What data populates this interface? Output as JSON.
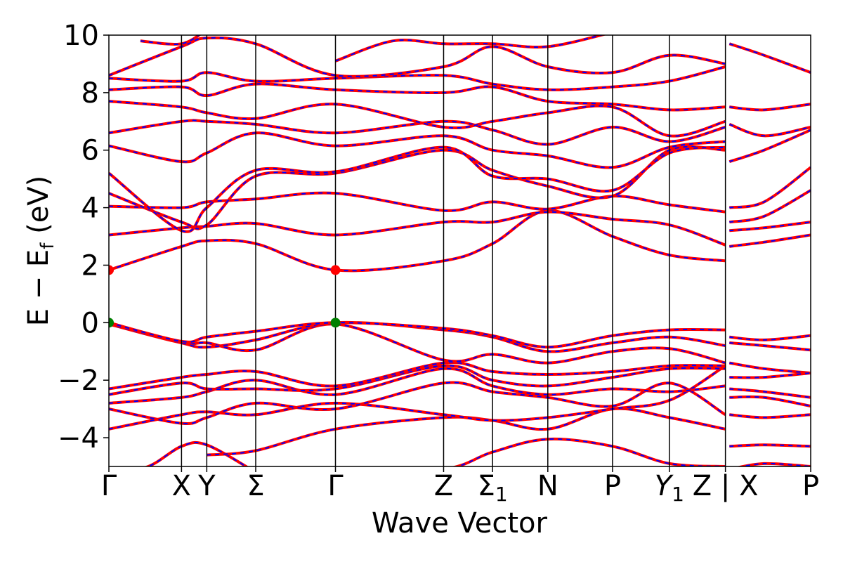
{
  "chart_data": {
    "type": "line",
    "xlabel": "Wave Vector",
    "ylabel": "E − E",
    "ylabel_sub": "f",
    "ylabel_unit": " (eV)",
    "ylim": [
      -5,
      10
    ],
    "yticks": [
      -4,
      -2,
      0,
      2,
      4,
      6,
      8,
      10
    ],
    "ytick_labels": [
      "−4",
      "−2",
      "0",
      "2",
      "4",
      "6",
      "8",
      "10"
    ],
    "xlim": [
      0,
      8.89
    ],
    "kpoints": [
      {
        "x": 0.0,
        "label": "Γ"
      },
      {
        "x": 0.92,
        "label": "X"
      },
      {
        "x": 1.24,
        "label": "Y"
      },
      {
        "x": 1.86,
        "label": "Σ"
      },
      {
        "x": 2.87,
        "label": "Γ"
      },
      {
        "x": 4.24,
        "label": "Z"
      },
      {
        "x": 4.86,
        "label": "Σ",
        "sub": "1"
      },
      {
        "x": 5.56,
        "label": "N"
      },
      {
        "x": 6.38,
        "label": "P"
      },
      {
        "x": 7.1,
        "label": "Y",
        "sub": "1",
        "italic": true
      },
      {
        "x": 7.81,
        "label": "Z | X"
      },
      {
        "x": 8.89,
        "label": "P"
      }
    ],
    "series_colors": {
      "primary": "#ff0000",
      "overlay": "#0000ff"
    },
    "markers": [
      {
        "x": 0.0,
        "y": 1.83,
        "color": "#ff0000"
      },
      {
        "x": 2.87,
        "y": 1.83,
        "color": "#ff0000"
      },
      {
        "x": 0.0,
        "y": 0.0,
        "color": "#008000"
      },
      {
        "x": 2.87,
        "y": 0.0,
        "color": "#008000"
      }
    ],
    "bands": [
      [
        [
          0,
          -5.3
        ],
        [
          0.5,
          -5.0
        ],
        [
          0.92,
          -4.3
        ],
        [
          1.24,
          -4.25
        ],
        [
          1.86,
          -5.2
        ]
      ],
      [
        [
          2.87,
          -5.3
        ],
        [
          4.24,
          -5.1
        ],
        [
          4.86,
          -4.5
        ],
        [
          5.56,
          -4.05
        ],
        [
          6.38,
          -4.3
        ],
        [
          7.1,
          -4.9
        ],
        [
          7.81,
          -5.0
        ]
      ],
      [
        [
          1.24,
          -4.6
        ],
        [
          1.86,
          -4.45
        ],
        [
          2.87,
          -3.7
        ],
        [
          4.24,
          -3.3
        ],
        [
          4.86,
          -3.4
        ],
        [
          5.56,
          -3.7
        ],
        [
          6.38,
          -3.0
        ],
        [
          7.1,
          -3.3
        ],
        [
          7.81,
          -3.7
        ]
      ],
      [
        [
          0,
          -3.7
        ],
        [
          0.92,
          -3.2
        ],
        [
          1.24,
          -3.1
        ],
        [
          1.86,
          -3.2
        ],
        [
          2.87,
          -2.8
        ],
        [
          4.24,
          -3.2
        ],
        [
          4.86,
          -3.4
        ],
        [
          5.56,
          -3.3
        ],
        [
          6.38,
          -3.0
        ],
        [
          7.1,
          -2.7
        ],
        [
          7.81,
          -1.5
        ]
      ],
      [
        [
          0,
          -3.0
        ],
        [
          0.92,
          -3.5
        ],
        [
          1.24,
          -3.3
        ],
        [
          1.86,
          -2.8
        ],
        [
          2.87,
          -3.0
        ],
        [
          4.24,
          -2.1
        ],
        [
          4.86,
          -2.4
        ],
        [
          5.56,
          -2.6
        ],
        [
          6.38,
          -2.9
        ],
        [
          7.1,
          -2.1
        ],
        [
          7.81,
          -3.2
        ]
      ],
      [
        [
          0,
          -2.8
        ],
        [
          0.92,
          -2.6
        ],
        [
          1.24,
          -2.4
        ],
        [
          1.86,
          -2.0
        ],
        [
          2.87,
          -2.5
        ],
        [
          4.24,
          -1.6
        ],
        [
          4.86,
          -2.2
        ],
        [
          5.56,
          -2.5
        ],
        [
          6.38,
          -2.3
        ],
        [
          7.1,
          -2.4
        ],
        [
          7.81,
          -2.2
        ]
      ],
      [
        [
          0,
          -2.5
        ],
        [
          0.92,
          -2.1
        ],
        [
          1.24,
          -2.3
        ],
        [
          1.86,
          -2.3
        ],
        [
          2.87,
          -2.3
        ],
        [
          4.24,
          -1.5
        ],
        [
          4.86,
          -2.0
        ],
        [
          5.56,
          -2.2
        ],
        [
          6.38,
          -1.9
        ],
        [
          7.1,
          -1.6
        ],
        [
          7.81,
          -1.6
        ]
      ],
      [
        [
          0,
          -2.3
        ],
        [
          0.92,
          -1.9
        ],
        [
          1.24,
          -1.8
        ],
        [
          1.86,
          -1.7
        ],
        [
          2.87,
          -2.2
        ],
        [
          4.24,
          -1.4
        ],
        [
          4.86,
          -1.7
        ],
        [
          5.56,
          -1.8
        ],
        [
          6.38,
          -1.7
        ],
        [
          7.1,
          -1.5
        ],
        [
          7.81,
          -1.5
        ]
      ],
      [
        [
          0,
          -0.05
        ],
        [
          0.92,
          -0.7
        ],
        [
          1.24,
          -0.7
        ],
        [
          1.86,
          -0.95
        ],
        [
          2.87,
          -0.05
        ],
        [
          4.24,
          -1.3
        ],
        [
          4.86,
          -1.1
        ],
        [
          5.56,
          -1.4
        ],
        [
          6.38,
          -1.0
        ],
        [
          7.1,
          -0.9
        ],
        [
          7.81,
          -1.4
        ]
      ],
      [
        [
          0,
          0.0
        ],
        [
          0.92,
          -0.7
        ],
        [
          1.24,
          -0.85
        ],
        [
          1.86,
          -0.6
        ],
        [
          2.87,
          0.0
        ],
        [
          4.24,
          -0.25
        ],
        [
          4.86,
          -0.5
        ],
        [
          5.56,
          -1.0
        ],
        [
          6.38,
          -0.7
        ],
        [
          7.1,
          -0.5
        ],
        [
          7.81,
          -0.8
        ]
      ],
      [
        [
          0,
          0.0
        ],
        [
          0.92,
          -0.65
        ],
        [
          1.24,
          -0.5
        ],
        [
          1.86,
          -0.3
        ],
        [
          2.87,
          0.0
        ],
        [
          4.24,
          -0.2
        ],
        [
          4.86,
          -0.45
        ],
        [
          5.56,
          -0.85
        ],
        [
          6.38,
          -0.45
        ],
        [
          7.1,
          -0.25
        ],
        [
          7.81,
          -0.25
        ]
      ],
      [
        [
          0,
          1.83
        ],
        [
          0.92,
          2.65
        ],
        [
          1.24,
          2.85
        ],
        [
          1.86,
          2.75
        ],
        [
          2.87,
          1.83
        ],
        [
          4.24,
          2.15
        ],
        [
          4.86,
          2.75
        ],
        [
          5.56,
          3.9
        ],
        [
          6.38,
          3.0
        ],
        [
          7.1,
          2.35
        ],
        [
          7.81,
          2.15
        ]
      ],
      [
        [
          0,
          3.05
        ],
        [
          0.92,
          3.3
        ],
        [
          1.24,
          3.35
        ],
        [
          1.86,
          3.45
        ],
        [
          2.87,
          3.05
        ],
        [
          4.24,
          3.5
        ],
        [
          4.86,
          3.5
        ],
        [
          5.56,
          3.85
        ],
        [
          6.38,
          3.6
        ],
        [
          7.1,
          3.4
        ],
        [
          7.81,
          2.7
        ]
      ],
      [
        [
          0,
          4.05
        ],
        [
          0.92,
          4.0
        ],
        [
          1.24,
          4.2
        ],
        [
          1.86,
          4.3
        ],
        [
          2.87,
          4.5
        ],
        [
          4.24,
          3.9
        ],
        [
          4.86,
          4.2
        ],
        [
          5.56,
          3.95
        ],
        [
          6.38,
          4.4
        ],
        [
          7.1,
          4.1
        ],
        [
          7.81,
          3.85
        ]
      ],
      [
        [
          0,
          4.5
        ],
        [
          0.92,
          3.5
        ],
        [
          1.24,
          3.4
        ],
        [
          1.86,
          5.1
        ],
        [
          2.87,
          5.2
        ],
        [
          4.24,
          6.0
        ],
        [
          4.86,
          5.3
        ],
        [
          5.56,
          4.75
        ],
        [
          6.38,
          4.4
        ],
        [
          7.1,
          6.0
        ],
        [
          7.81,
          6.0
        ]
      ],
      [
        [
          0,
          5.2
        ],
        [
          0.92,
          3.2
        ],
        [
          1.24,
          4.0
        ],
        [
          1.86,
          5.3
        ],
        [
          2.87,
          5.25
        ],
        [
          4.24,
          6.1
        ],
        [
          4.86,
          5.1
        ],
        [
          5.56,
          5.0
        ],
        [
          6.38,
          4.6
        ],
        [
          7.1,
          5.9
        ],
        [
          7.81,
          6.1
        ]
      ],
      [
        [
          0,
          6.15
        ],
        [
          0.92,
          5.6
        ],
        [
          1.24,
          5.9
        ],
        [
          1.86,
          6.6
        ],
        [
          2.87,
          6.15
        ],
        [
          4.24,
          6.5
        ],
        [
          4.86,
          6.0
        ],
        [
          5.56,
          5.8
        ],
        [
          6.38,
          5.4
        ],
        [
          7.1,
          6.1
        ],
        [
          7.81,
          6.3
        ]
      ],
      [
        [
          0,
          6.6
        ],
        [
          0.92,
          7.0
        ],
        [
          1.24,
          7.0
        ],
        [
          1.86,
          6.9
        ],
        [
          2.87,
          6.6
        ],
        [
          4.24,
          7.0
        ],
        [
          4.86,
          6.7
        ],
        [
          5.56,
          6.2
        ],
        [
          6.38,
          6.8
        ],
        [
          7.1,
          6.3
        ],
        [
          7.81,
          6.8
        ]
      ],
      [
        [
          0,
          7.7
        ],
        [
          0.92,
          7.5
        ],
        [
          1.24,
          7.3
        ],
        [
          1.86,
          7.1
        ],
        [
          2.87,
          7.6
        ],
        [
          4.24,
          6.8
        ],
        [
          4.86,
          7.0
        ],
        [
          5.56,
          7.3
        ],
        [
          6.38,
          7.5
        ],
        [
          7.1,
          6.5
        ],
        [
          7.81,
          7.0
        ]
      ],
      [
        [
          0,
          8.1
        ],
        [
          0.92,
          8.2
        ],
        [
          1.24,
          7.9
        ],
        [
          1.86,
          8.3
        ],
        [
          2.87,
          8.1
        ],
        [
          4.24,
          8.0
        ],
        [
          4.86,
          8.2
        ],
        [
          5.56,
          7.7
        ],
        [
          6.38,
          7.6
        ],
        [
          7.1,
          7.4
        ],
        [
          7.81,
          7.5
        ]
      ],
      [
        [
          0,
          8.5
        ],
        [
          0.92,
          8.4
        ],
        [
          1.24,
          8.7
        ],
        [
          1.86,
          8.4
        ],
        [
          2.87,
          8.5
        ],
        [
          4.24,
          8.6
        ],
        [
          4.86,
          8.3
        ],
        [
          5.56,
          8.1
        ],
        [
          6.38,
          8.2
        ],
        [
          7.1,
          8.4
        ],
        [
          7.81,
          8.9
        ]
      ],
      [
        [
          0,
          8.6
        ],
        [
          0.92,
          9.6
        ],
        [
          1.24,
          9.9
        ],
        [
          1.86,
          9.7
        ],
        [
          2.87,
          8.6
        ],
        [
          4.24,
          8.9
        ],
        [
          4.86,
          9.6
        ],
        [
          5.56,
          8.9
        ],
        [
          6.38,
          8.7
        ],
        [
          7.1,
          9.3
        ],
        [
          7.81,
          9.0
        ]
      ],
      [
        [
          0.4,
          9.8
        ],
        [
          0.92,
          9.7
        ],
        [
          1.24,
          10.2
        ]
      ],
      [
        [
          2.87,
          9.1
        ],
        [
          3.6,
          9.8
        ],
        [
          4.24,
          9.7
        ],
        [
          4.86,
          9.7
        ],
        [
          5.56,
          9.6
        ],
        [
          6.38,
          10.1
        ]
      ],
      [
        [
          7.86,
          9.7
        ],
        [
          8.3,
          9.3
        ],
        [
          8.89,
          8.7
        ]
      ],
      [
        [
          7.86,
          7.5
        ],
        [
          8.3,
          7.4
        ],
        [
          8.89,
          7.6
        ]
      ],
      [
        [
          7.86,
          6.9
        ],
        [
          8.3,
          6.5
        ],
        [
          8.89,
          6.8
        ]
      ],
      [
        [
          7.86,
          5.6
        ],
        [
          8.3,
          6.0
        ],
        [
          8.89,
          6.7
        ]
      ],
      [
        [
          7.86,
          4.0
        ],
        [
          8.3,
          4.2
        ],
        [
          8.89,
          5.4
        ]
      ],
      [
        [
          7.86,
          3.5
        ],
        [
          8.3,
          3.7
        ],
        [
          8.89,
          4.6
        ]
      ],
      [
        [
          7.86,
          3.2
        ],
        [
          8.3,
          3.3
        ],
        [
          8.89,
          3.5
        ]
      ],
      [
        [
          7.86,
          2.65
        ],
        [
          8.3,
          2.8
        ],
        [
          8.89,
          3.05
        ]
      ],
      [
        [
          7.86,
          -0.5
        ],
        [
          8.3,
          -0.6
        ],
        [
          8.89,
          -0.45
        ]
      ],
      [
        [
          7.86,
          -0.7
        ],
        [
          8.3,
          -0.8
        ],
        [
          8.89,
          -0.95
        ]
      ],
      [
        [
          7.86,
          -1.4
        ],
        [
          8.3,
          -1.6
        ],
        [
          8.89,
          -1.75
        ]
      ],
      [
        [
          7.86,
          -1.9
        ],
        [
          8.3,
          -1.9
        ],
        [
          8.89,
          -1.75
        ]
      ],
      [
        [
          7.86,
          -2.3
        ],
        [
          8.3,
          -2.4
        ],
        [
          8.89,
          -2.6
        ]
      ],
      [
        [
          7.86,
          -2.6
        ],
        [
          8.3,
          -2.6
        ],
        [
          8.89,
          -2.9
        ]
      ],
      [
        [
          7.86,
          -3.2
        ],
        [
          8.3,
          -3.3
        ],
        [
          8.89,
          -3.2
        ]
      ],
      [
        [
          7.86,
          -4.3
        ],
        [
          8.3,
          -4.25
        ],
        [
          8.89,
          -4.3
        ]
      ],
      [
        [
          7.86,
          -5.1
        ],
        [
          8.3,
          -4.9
        ],
        [
          8.89,
          -5.0
        ]
      ]
    ]
  }
}
